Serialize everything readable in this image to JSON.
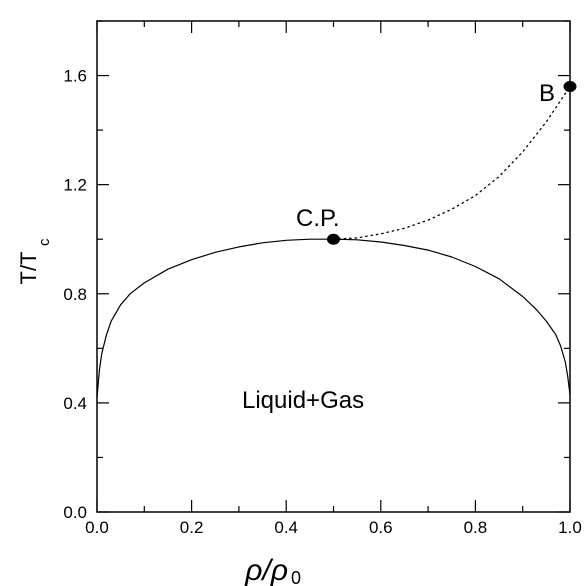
{
  "chart_data": {
    "type": "line",
    "xlabel": {
      "main": "ρ/ρ",
      "sub": "0"
    },
    "ylabel": {
      "main": "T/T",
      "sub": "c"
    },
    "xlim": [
      0.0,
      1.0
    ],
    "ylim": [
      0.0,
      1.8
    ],
    "x_ticks": [
      "0.0",
      "0.2",
      "0.4",
      "0.6",
      "0.8",
      "1.0"
    ],
    "y_ticks": [
      "0.0",
      "0.4",
      "0.8",
      "1.2",
      "1.6"
    ],
    "grid": false,
    "series": [
      {
        "style": "solid",
        "x": [
          0.0,
          0.005,
          0.01,
          0.02,
          0.03,
          0.05,
          0.07,
          0.1,
          0.15,
          0.2,
          0.25,
          0.3,
          0.35,
          0.4,
          0.45,
          0.5,
          0.55,
          0.6,
          0.65,
          0.7,
          0.75,
          0.8,
          0.85,
          0.9,
          0.93,
          0.95,
          0.97,
          0.98,
          0.99,
          0.995,
          1.0
        ],
        "y": [
          0.42,
          0.52,
          0.58,
          0.65,
          0.7,
          0.76,
          0.8,
          0.84,
          0.89,
          0.925,
          0.952,
          0.972,
          0.987,
          0.996,
          1.0,
          1.0,
          0.998,
          0.99,
          0.977,
          0.96,
          0.935,
          0.9,
          0.855,
          0.79,
          0.74,
          0.7,
          0.65,
          0.61,
          0.55,
          0.5,
          0.43
        ]
      },
      {
        "style": "dotted",
        "x": [
          0.5,
          0.55,
          0.6,
          0.65,
          0.7,
          0.75,
          0.8,
          0.85,
          0.9,
          0.95,
          1.0
        ],
        "y": [
          1.0,
          1.005,
          1.02,
          1.04,
          1.07,
          1.11,
          1.16,
          1.23,
          1.32,
          1.43,
          1.56
        ]
      }
    ],
    "points": [
      {
        "name": "C.P.",
        "x": 0.5,
        "y": 1.0
      },
      {
        "name": "B",
        "x": 1.0,
        "y": 1.56
      }
    ],
    "annotations": [
      {
        "text": "C.P.",
        "x": 0.5,
        "y": 1.0
      },
      {
        "text": "B",
        "x": 1.0,
        "y": 1.56
      },
      {
        "text": "Liquid+Gas",
        "x": 0.5,
        "y": 0.4
      }
    ]
  }
}
